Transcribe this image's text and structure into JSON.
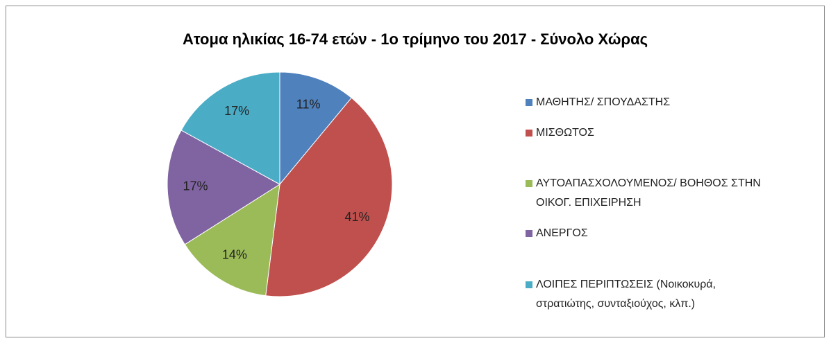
{
  "chart_data": {
    "type": "pie",
    "title": "Ατομα ηλικίας 16-74 ετών  -  1ο τρίμηνο του 2017 - Σύνολο Χώρας",
    "categories": [
      "ΜΑΘΗΤΗΣ/ ΣΠΟΥΔΑΣΤΗΣ",
      "ΜΙΣΘΩΤΟΣ",
      "ΑΥΤΟΑΠΑΣΧΟΛΟΥΜΕΝΟΣ/ ΒΟΗΘΟΣ ΣΤΗΝ ΟΙΚΟΓ. ΕΠΙΧΕΙΡΗΣΗ",
      "ΑΝΕΡΓΟΣ",
      "ΛΟΙΠΕΣ ΠΕΡΙΠΤΩΣΕΙΣ (Νοικοκυρά, στρατιώτης, συνταξιούχος, κλπ.)"
    ],
    "values": [
      11,
      41,
      14,
      17,
      17
    ],
    "value_labels": [
      "11%",
      "41%",
      "14%",
      "17%",
      "17%"
    ],
    "colors": [
      "#4f81bd",
      "#c0504d",
      "#9bbb59",
      "#8064a2",
      "#4bacc6"
    ],
    "legend": "right"
  }
}
